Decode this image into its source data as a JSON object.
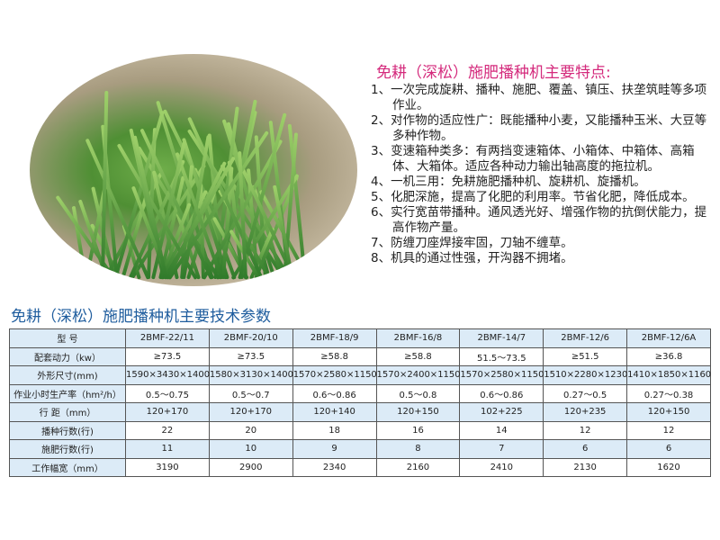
{
  "photo": {
    "alt_subject": "wheat-seedlings"
  },
  "features": {
    "title": "免耕（深松）施肥播种机主要特点:",
    "items": [
      "1、一次完成旋耕、播种、施肥、覆盖、镇压、扶垄筑畦等多项作业。",
      "2、对作物的适应性广：既能播种小麦，又能播种玉米、大豆等多种作物。",
      "3、变速箱种类多：有两挡变速箱体、小箱体、中箱体、高箱体、大箱体。适应各种动力输出轴高度的拖拉机。",
      "4、一机三用：免耕施肥播种机、旋耕机、旋播机。",
      "5、化肥深施，提高了化肥的利用率。节省化肥，降低成本。",
      "6、实行宽苗带播种。通风透光好、增强作物的抗倒伏能力，提高作物产量。",
      "7、防缠刀座焊接牢固，刀轴不缠草。",
      "8、机具的通过性强，开沟器不拥堵。"
    ]
  },
  "specs": {
    "title": "免耕（深松）施肥播种机主要技术参数",
    "rows": [
      {
        "label": "型  号",
        "values": [
          "2BMF-22/11",
          "2BMF-20/10",
          "2BMF-18/9",
          "2BMF-16/8",
          "2BMF-14/7",
          "2BMF-12/6",
          "2BMF-12/6A"
        ]
      },
      {
        "label": "配套动力（kw）",
        "values": [
          "≥73.5",
          "≥73.5",
          "≥58.8",
          "≥58.8",
          "51.5～73.5",
          "≥51.5",
          "≥36.8"
        ]
      },
      {
        "label": "外形尺寸(mm)",
        "values": [
          "1590×3430×1400",
          "1580×3130×1400",
          "1570×2580×1150",
          "1570×2400×1150",
          "1570×2580×1150",
          "1510×2280×1230",
          "1410×1850×1160"
        ]
      },
      {
        "label": "作业小时生产率（hm²/h）",
        "values": [
          "0.5～0.75",
          "0.5～0.7",
          "0.6～0.86",
          "0.5～0.8",
          "0.6～0.86",
          "0.27～0.5",
          "0.27～0.38"
        ]
      },
      {
        "label": "行 距（mm）",
        "values": [
          "120+170",
          "120+170",
          "120+140",
          "120+150",
          "102+225",
          "120+235",
          "120+150"
        ]
      },
      {
        "label": "播种行数(行)",
        "values": [
          "22",
          "20",
          "18",
          "16",
          "14",
          "12",
          "12"
        ]
      },
      {
        "label": "施肥行数(行)",
        "values": [
          "11",
          "10",
          "9",
          "8",
          "7",
          "6",
          "6"
        ]
      },
      {
        "label": "工作幅宽（mm）",
        "values": [
          "3190",
          "2900",
          "2340",
          "2160",
          "2410",
          "2130",
          "1620"
        ]
      }
    ]
  },
  "colors": {
    "feature_title": "#d42a7c",
    "table_title": "#1f5d9e",
    "table_band": "#dcebf7"
  }
}
